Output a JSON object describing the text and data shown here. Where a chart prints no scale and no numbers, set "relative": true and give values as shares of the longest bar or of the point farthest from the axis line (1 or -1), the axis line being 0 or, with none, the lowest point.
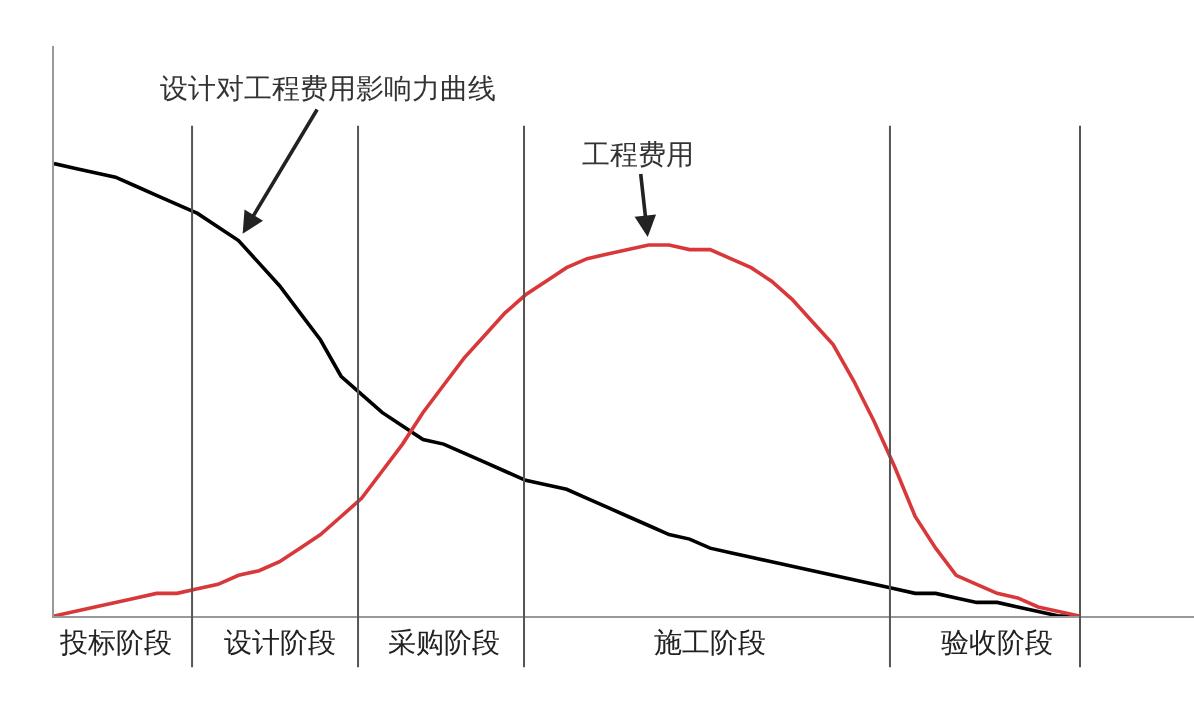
{
  "chart_data": {
    "type": "line",
    "relative": true,
    "categories": [
      null,
      null,
      null,
      "投标阶段",
      null,
      null,
      null,
      null,
      null,
      null,
      null,
      "设计阶段",
      null,
      null,
      null,
      null,
      null,
      null,
      null,
      "采购阶段",
      null,
      null,
      null,
      null,
      null,
      null,
      null,
      null,
      null,
      null,
      null,
      null,
      "施工阶段",
      null,
      null,
      null,
      null,
      null,
      null,
      null,
      null,
      null,
      null,
      null,
      null,
      null,
      "验收阶段",
      null,
      null,
      null,
      null
    ],
    "series": [
      {
        "name": "设计对工程费用影响力曲线",
        "color": "#000000",
        "values": [
          1.0,
          0.99,
          0.98,
          0.97,
          0.95,
          0.93,
          0.91,
          0.89,
          0.86,
          0.83,
          0.78,
          0.73,
          0.67,
          0.61,
          0.53,
          0.49,
          0.45,
          0.42,
          0.39,
          0.38,
          0.36,
          0.34,
          0.32,
          0.3,
          0.29,
          0.28,
          0.26,
          0.24,
          0.22,
          0.2,
          0.18,
          0.17,
          0.15,
          0.14,
          0.13,
          0.12,
          0.11,
          0.1,
          0.09,
          0.08,
          0.07,
          0.06,
          0.05,
          0.05,
          0.04,
          0.03,
          0.03,
          0.02,
          0.01,
          0,
          0
        ]
      },
      {
        "name": "工程费用",
        "color": "#d9383a",
        "values": [
          0,
          0.01,
          0.02,
          0.03,
          0.04,
          0.05,
          0.05,
          0.06,
          0.07,
          0.09,
          0.1,
          0.12,
          0.15,
          0.18,
          0.22,
          0.26,
          0.32,
          0.38,
          0.45,
          0.51,
          0.57,
          0.62,
          0.67,
          0.71,
          0.74,
          0.77,
          0.79,
          0.8,
          0.81,
          0.82,
          0.82,
          0.81,
          0.81,
          0.79,
          0.77,
          0.74,
          0.7,
          0.65,
          0.6,
          0.52,
          0.43,
          0.33,
          0.22,
          0.15,
          0.09,
          0.07,
          0.05,
          0.04,
          0.02,
          0.01,
          0
        ]
      }
    ],
    "grid": false,
    "legend": false
  }
}
